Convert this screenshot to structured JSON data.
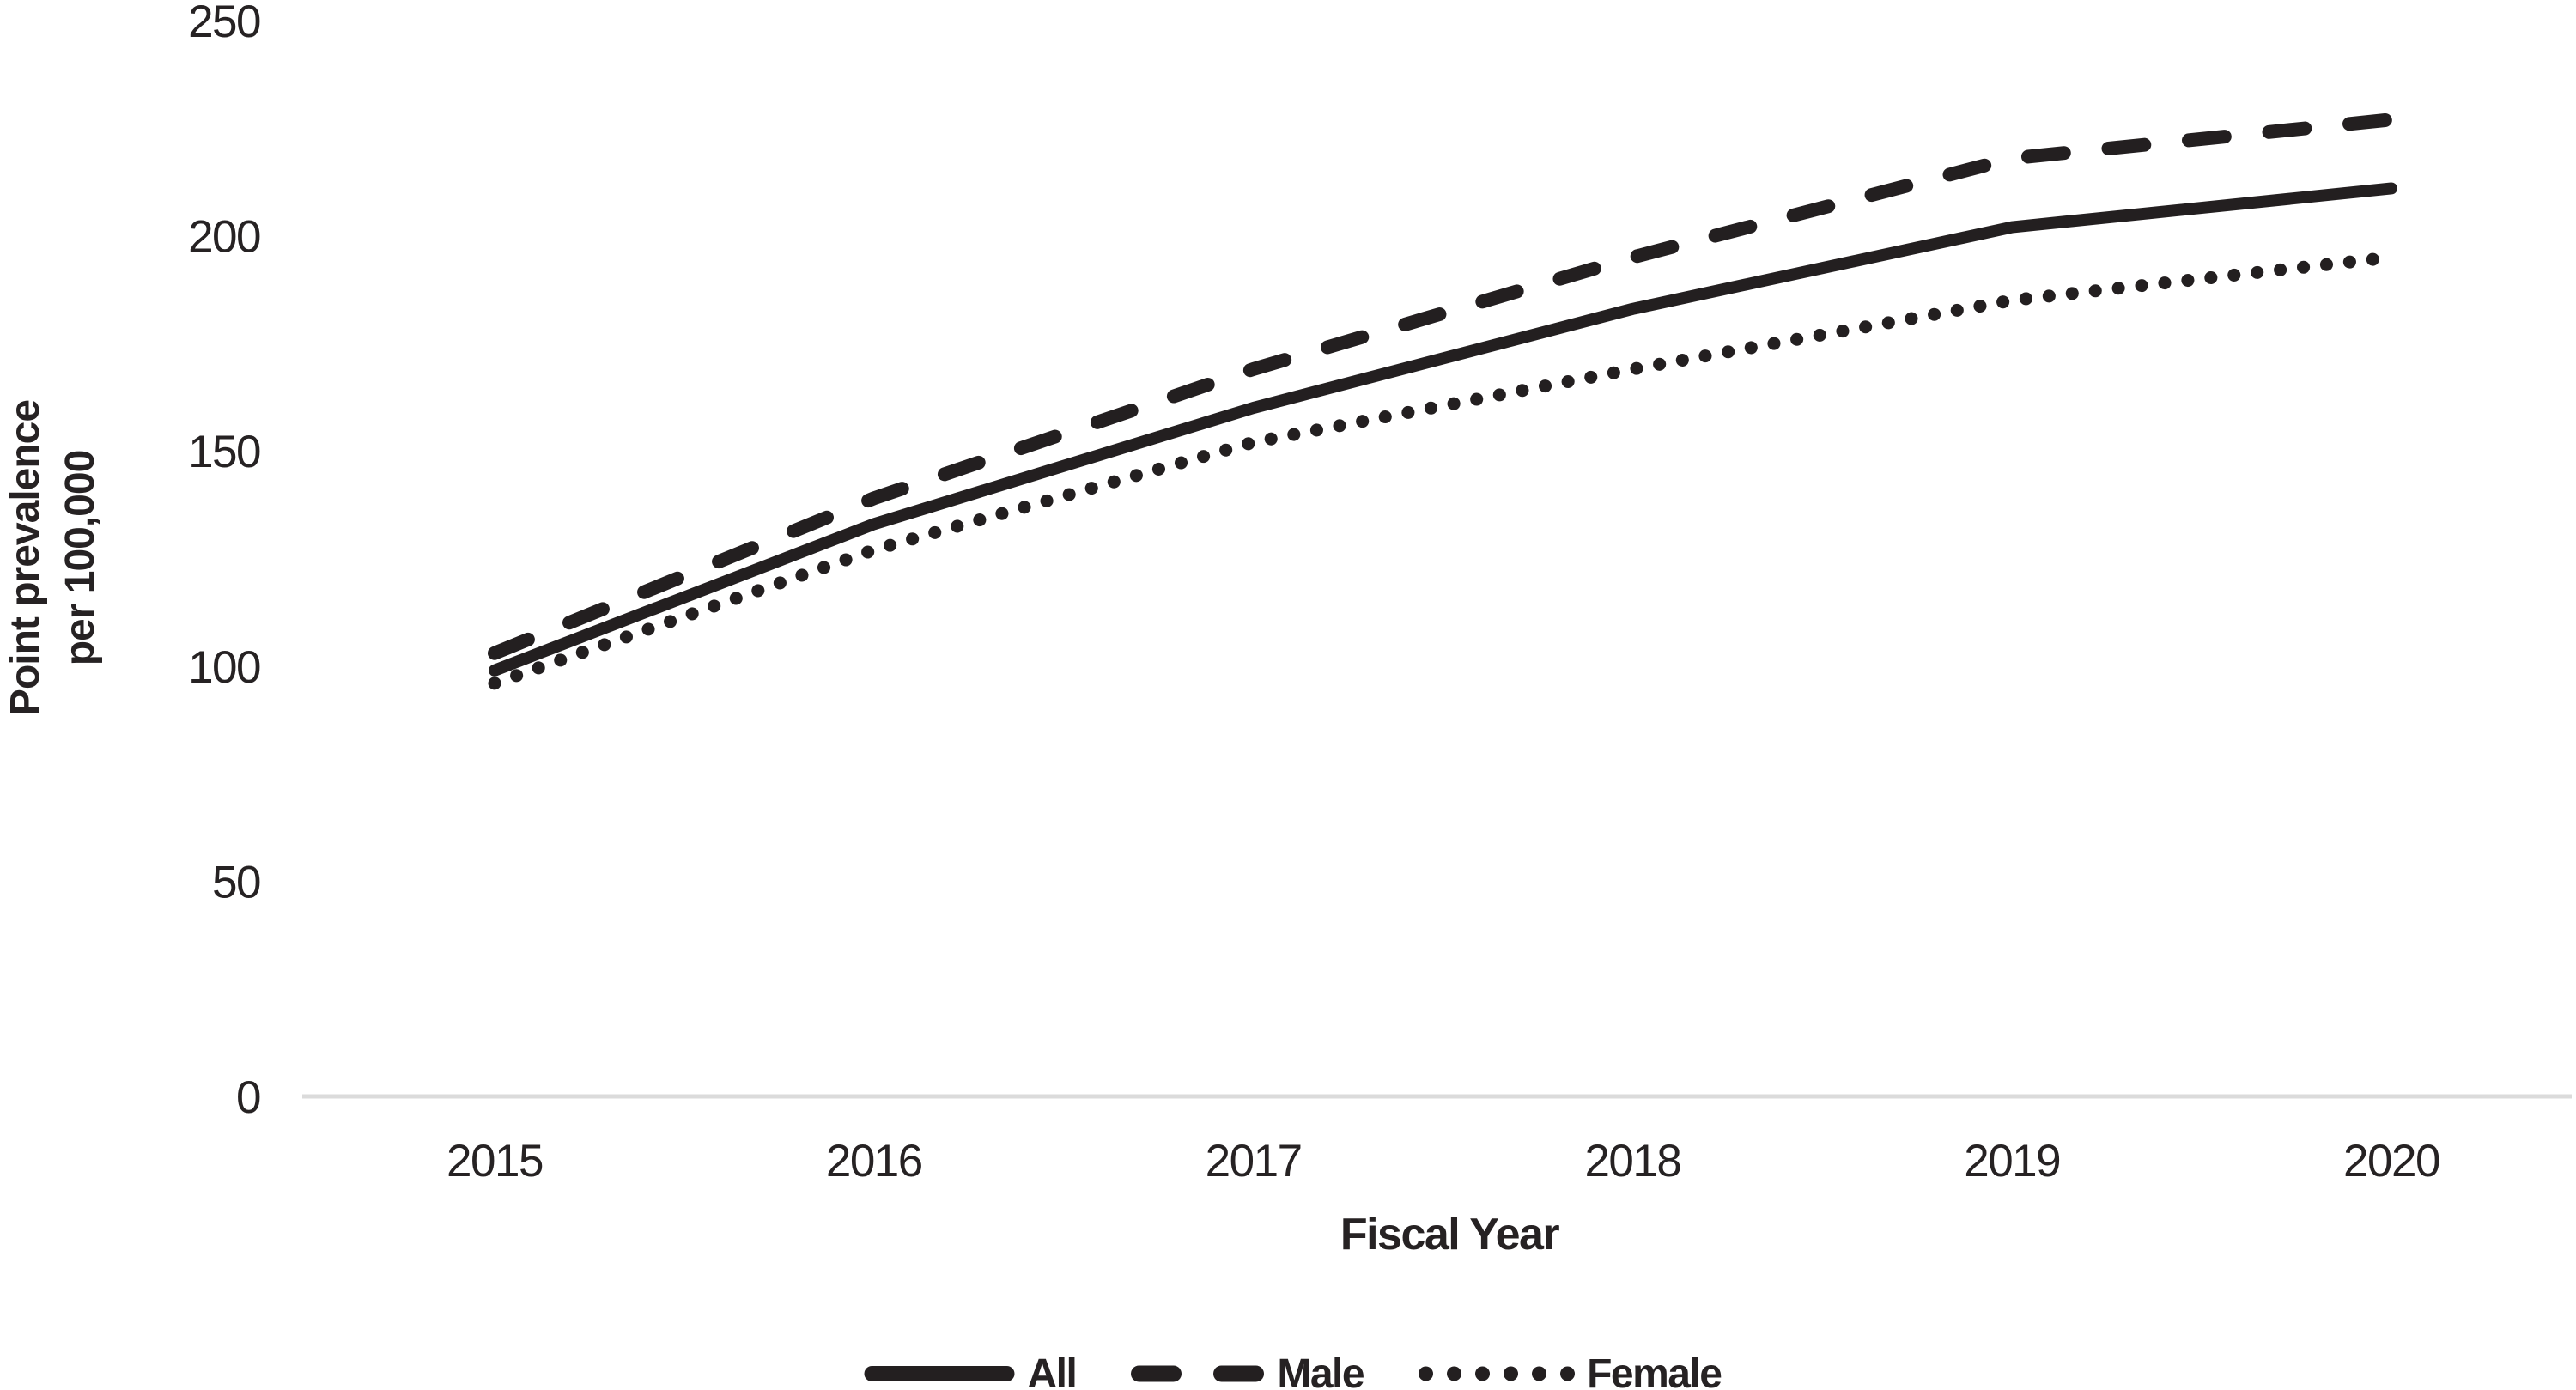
{
  "chart_data": {
    "type": "line",
    "title": "",
    "xlabel": "Fiscal Year",
    "ylabel": "Point prevalence per 100,000",
    "ylabel_lines": [
      "Point prevalence",
      "per 100,000"
    ],
    "categories": [
      "2015",
      "2016",
      "2017",
      "2018",
      "2019",
      "2020"
    ],
    "series": [
      {
        "name": "All",
        "line_style": "solid",
        "values": [
          99,
          133,
          160,
          183,
          202,
          211
        ]
      },
      {
        "name": "Male",
        "line_style": "dashed",
        "values": [
          103,
          139,
          169,
          195,
          218,
          227
        ]
      },
      {
        "name": "Female",
        "line_style": "dotted",
        "values": [
          96,
          127,
          152,
          169,
          185,
          195
        ]
      }
    ],
    "ylim": [
      0,
      250
    ],
    "yticks": [
      0,
      50,
      100,
      150,
      200,
      250
    ],
    "grid": false,
    "legend_position": "bottom",
    "line_color": "#231f20",
    "axis_line_color": "#dbdbdb",
    "text_color": "#262223"
  }
}
